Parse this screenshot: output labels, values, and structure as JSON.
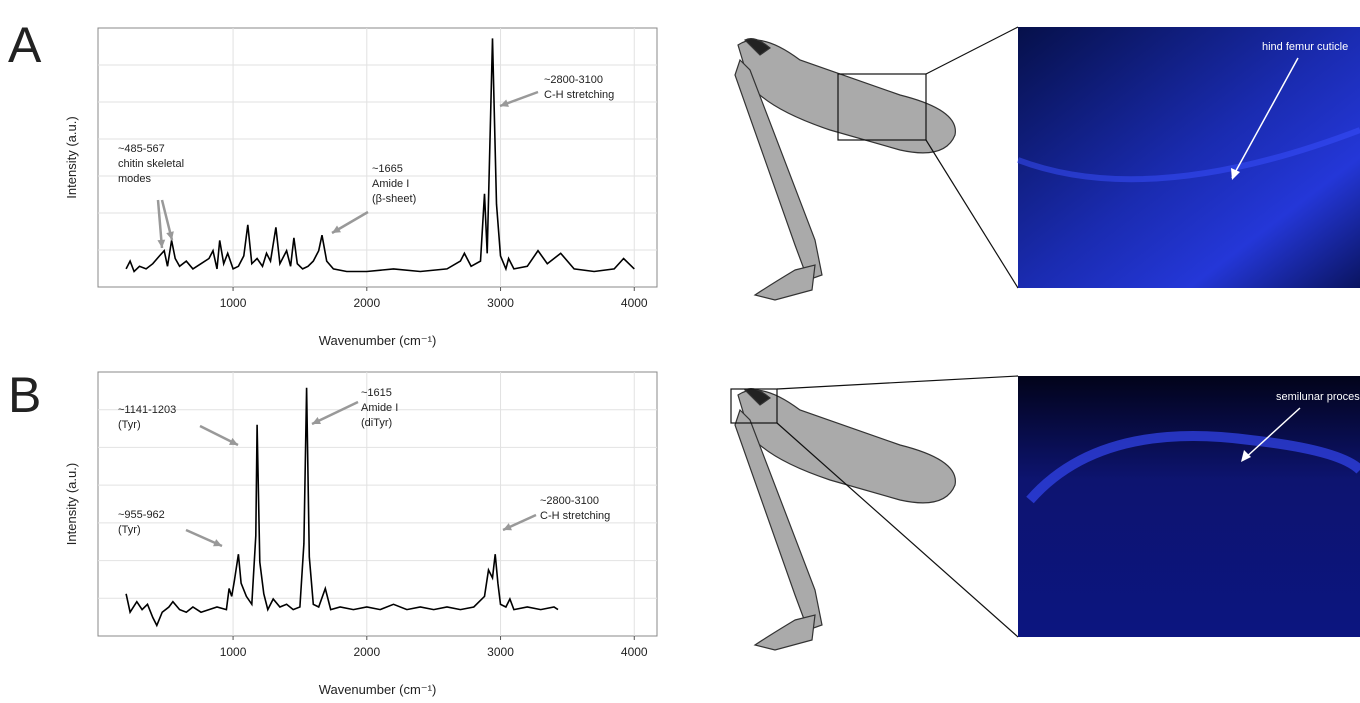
{
  "panel_labels": [
    "A",
    "B"
  ],
  "image_labels": [
    "hind femur cuticle",
    "semilunar process"
  ],
  "chart_data": [
    {
      "type": "line",
      "ylabel": "Intensity (a.u.)",
      "xlabel": "Wavenumber (cm⁻¹)",
      "xlim": [
        -10,
        4170
      ],
      "ylim": [
        0,
        100
      ],
      "xticks": [
        1000,
        2000,
        3000,
        4000
      ],
      "grid": true,
      "color": "#000000",
      "x": [
        200,
        230,
        260,
        300,
        350,
        400,
        450,
        485,
        510,
        540,
        567,
        600,
        650,
        700,
        760,
        820,
        850,
        880,
        900,
        930,
        960,
        1000,
        1040,
        1080,
        1110,
        1140,
        1180,
        1220,
        1250,
        1280,
        1320,
        1350,
        1400,
        1430,
        1455,
        1480,
        1520,
        1560,
        1600,
        1640,
        1665,
        1700,
        1750,
        1850,
        2000,
        2200,
        2400,
        2600,
        2700,
        2730,
        2780,
        2850,
        2880,
        2900,
        2940,
        2970,
        3000,
        3040,
        3060,
        3100,
        3200,
        3280,
        3350,
        3450,
        3550,
        3700,
        3850,
        3920,
        3960,
        4000
      ],
      "values": [
        7,
        10,
        6,
        8,
        7,
        9,
        12,
        14,
        8,
        18,
        11,
        8,
        10,
        7,
        9,
        11,
        14,
        7,
        18,
        9,
        13,
        7,
        8,
        12,
        24,
        9,
        11,
        8,
        13,
        10,
        23,
        9,
        14,
        8,
        19,
        9,
        7,
        8,
        10,
        14,
        20,
        10,
        7,
        6,
        6,
        7,
        6,
        7,
        10,
        13,
        8,
        10,
        36,
        13,
        96,
        32,
        12,
        7,
        11,
        7,
        8,
        14,
        9,
        13,
        7,
        6,
        7,
        11,
        9,
        7
      ],
      "annotations": [
        {
          "lines": [
            "~485-567",
            "chitin skeletal",
            "modes"
          ]
        },
        {
          "lines": [
            "~1665",
            "Amide I",
            "(β-sheet)"
          ]
        },
        {
          "lines": [
            "~2800-3100",
            "C-H stretching"
          ]
        }
      ]
    },
    {
      "type": "line",
      "ylabel": "Intensity (a.u.)",
      "xlabel": "Wavenumber (cm⁻¹)",
      "xlim": [
        -10,
        4170
      ],
      "ylim": [
        0,
        100
      ],
      "xticks": [
        1000,
        2000,
        3000,
        4000
      ],
      "grid": true,
      "color": "#000000",
      "x": [
        200,
        230,
        280,
        320,
        360,
        400,
        430,
        470,
        520,
        550,
        600,
        650,
        700,
        760,
        820,
        880,
        950,
        970,
        990,
        1010,
        1040,
        1060,
        1100,
        1140,
        1170,
        1180,
        1200,
        1230,
        1260,
        1300,
        1350,
        1400,
        1450,
        1500,
        1530,
        1550,
        1570,
        1600,
        1640,
        1690,
        1730,
        1800,
        1900,
        2000,
        2100,
        2200,
        2300,
        2400,
        2500,
        2600,
        2700,
        2800,
        2880,
        2910,
        2940,
        2960,
        2980,
        3000,
        3040,
        3070,
        3100,
        3200,
        3300,
        3400,
        3430
      ],
      "values": [
        16,
        9,
        13,
        10,
        12,
        7,
        4,
        9,
        11,
        13,
        10,
        9,
        11,
        9,
        10,
        11,
        10,
        18,
        15,
        21,
        31,
        20,
        15,
        12,
        38,
        80,
        28,
        16,
        10,
        14,
        11,
        12,
        10,
        11,
        35,
        94,
        30,
        12,
        11,
        18,
        10,
        11,
        10,
        11,
        10,
        12,
        10,
        11,
        10,
        11,
        10,
        11,
        15,
        25,
        22,
        31,
        20,
        12,
        11,
        14,
        10,
        11,
        10,
        11,
        10
      ],
      "annotations": [
        {
          "lines": [
            "~1141-1203",
            "(Tyr)"
          ]
        },
        {
          "lines": [
            "~1615",
            "Amide I",
            "(diTyr)"
          ]
        },
        {
          "lines": [
            "~955-962",
            "(Tyr)"
          ]
        },
        {
          "lines": [
            "~2800-3100",
            "C-H stretching"
          ]
        }
      ]
    }
  ]
}
